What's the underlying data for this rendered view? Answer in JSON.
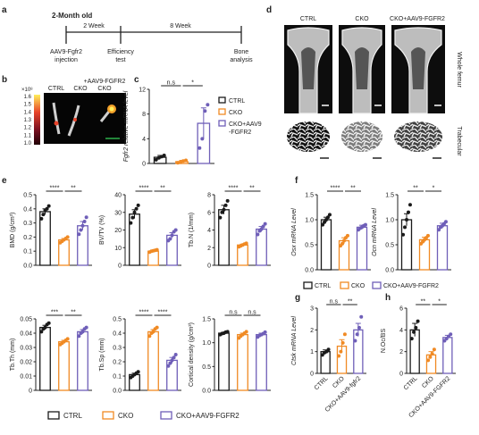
{
  "colors": {
    "ctrl": "#1a1a1a",
    "cko": "#f08a24",
    "rescue": "#6f5fb8"
  },
  "panel_a": {
    "letter": "a",
    "start": "2-Month old",
    "int1": "2 Week",
    "int2": "8 Week",
    "step1": [
      "AAV9-Fgfr2",
      "injection"
    ],
    "step2": [
      "Efficiency",
      "test"
    ],
    "step3": [
      "Bone",
      "analysis"
    ]
  },
  "panel_b": {
    "letter": "b",
    "scale": "×10⁸",
    "scale_ticks": [
      "1.6",
      "1.5",
      "1.4",
      "1.3",
      "1.2",
      "1.1",
      "1.0"
    ],
    "labels": [
      "CTRL",
      "CKO",
      "CKO"
    ],
    "top_label": "+AAV9-FGFR2"
  },
  "panel_d": {
    "letter": "d",
    "cols": [
      "CTRL",
      "CKO",
      "CKO+AAV9-FGFR2"
    ],
    "rows": [
      "Whole femur",
      "Trabecular"
    ]
  },
  "legend": {
    "ctrl": "CTRL",
    "cko": "CKO",
    "rescue": "CKO+AAV9-FGFR2",
    "rescue_c": [
      "CKO+AAV9",
      "-FGFR2"
    ]
  },
  "letters": {
    "c": "c",
    "e": "e",
    "f": "f",
    "g": "g",
    "h": "h"
  },
  "chart_data": [
    {
      "id": "c",
      "type": "bar",
      "ylabel": "Fgfr2 relative mRNA level",
      "categories": [
        "CTRL",
        "CKO",
        "CKO+AAV9-FGFR2"
      ],
      "values": [
        1.0,
        0.3,
        6.5
      ],
      "errors": [
        0.3,
        0.2,
        2.5
      ],
      "points": [
        [
          0.6,
          0.9,
          1.1,
          1.3
        ],
        [
          0.1,
          0.2,
          0.4,
          0.5
        ],
        [
          2.5,
          4.0,
          8.5,
          9.5
        ]
      ],
      "ylim": [
        0,
        12
      ],
      "ticks": [
        "0",
        "4",
        "8",
        "12"
      ],
      "sig": [
        {
          "a": 0,
          "b": 1,
          "text": "n.s"
        },
        {
          "a": 1,
          "b": 2,
          "text": "*"
        }
      ]
    },
    {
      "id": "e1",
      "type": "bar",
      "ylabel": "BMD (g/cm³)",
      "values": [
        0.38,
        0.18,
        0.28
      ],
      "errors": [
        0.02,
        0.01,
        0.03
      ],
      "points": [
        [
          0.33,
          0.36,
          0.39,
          0.4,
          0.42
        ],
        [
          0.16,
          0.17,
          0.18,
          0.19,
          0.2
        ],
        [
          0.22,
          0.25,
          0.28,
          0.31,
          0.34
        ]
      ],
      "ylim": [
        0,
        0.5
      ],
      "ticks": [
        "0.0",
        "0.1",
        "0.2",
        "0.3",
        "0.4",
        "0.5"
      ],
      "sig": [
        {
          "a": 0,
          "b": 1,
          "text": "****"
        },
        {
          "a": 1,
          "b": 2,
          "text": "**"
        }
      ]
    },
    {
      "id": "e2",
      "type": "bar",
      "ylabel": "BV/TV (%)",
      "values": [
        29,
        8,
        17
      ],
      "errors": [
        2.5,
        0.4,
        1.5
      ],
      "points": [
        [
          24,
          27,
          30,
          32,
          34
        ],
        [
          7.5,
          8,
          8.2,
          8.5,
          8.8
        ],
        [
          14,
          15,
          17,
          19,
          20
        ]
      ],
      "ylim": [
        0,
        40
      ],
      "ticks": [
        "0",
        "10",
        "20",
        "30",
        "40"
      ],
      "sig": [
        {
          "a": 0,
          "b": 1,
          "text": "****"
        },
        {
          "a": 1,
          "b": 2,
          "text": "**"
        }
      ]
    },
    {
      "id": "e3",
      "type": "bar",
      "ylabel": "Tb.N (1/mm)",
      "values": [
        6.3,
        2.3,
        4.1
      ],
      "errors": [
        0.5,
        0.1,
        0.3
      ],
      "points": [
        [
          5.4,
          6.0,
          6.3,
          6.8,
          7.3
        ],
        [
          2.1,
          2.2,
          2.3,
          2.4,
          2.5
        ],
        [
          3.5,
          3.9,
          4.1,
          4.4,
          4.7
        ]
      ],
      "ylim": [
        0,
        8
      ],
      "ticks": [
        "0",
        "2",
        "4",
        "6",
        "8"
      ],
      "sig": [
        {
          "a": 0,
          "b": 1,
          "text": "****"
        },
        {
          "a": 1,
          "b": 2,
          "text": "**"
        }
      ]
    },
    {
      "id": "e4",
      "type": "bar",
      "ylabel": "Tb.Th (mm)",
      "values": [
        0.044,
        0.034,
        0.041
      ],
      "errors": [
        0.0015,
        0.001,
        0.0015
      ],
      "points": [
        [
          0.041,
          0.043,
          0.044,
          0.046,
          0.047
        ],
        [
          0.032,
          0.033,
          0.034,
          0.035,
          0.036
        ],
        [
          0.038,
          0.04,
          0.041,
          0.043,
          0.044
        ]
      ],
      "ylim": [
        0,
        0.05
      ],
      "ticks": [
        "0",
        "0.01",
        "0.02",
        "0.03",
        "0.04",
        "0.05"
      ],
      "sig": [
        {
          "a": 0,
          "b": 1,
          "text": "***"
        },
        {
          "a": 1,
          "b": 2,
          "text": "**"
        }
      ]
    },
    {
      "id": "e5",
      "type": "bar",
      "ylabel": "Tb.Sp (mm)",
      "values": [
        0.11,
        0.41,
        0.21
      ],
      "errors": [
        0.01,
        0.015,
        0.02
      ],
      "points": [
        [
          0.09,
          0.1,
          0.11,
          0.12,
          0.13
        ],
        [
          0.38,
          0.4,
          0.41,
          0.43,
          0.44
        ],
        [
          0.17,
          0.19,
          0.21,
          0.23,
          0.25
        ]
      ],
      "ylim": [
        0,
        0.5
      ],
      "ticks": [
        "0.0",
        "0.1",
        "0.2",
        "0.3",
        "0.4",
        "0.5"
      ],
      "sig": [
        {
          "a": 0,
          "b": 1,
          "text": "****"
        },
        {
          "a": 1,
          "b": 2,
          "text": "****"
        }
      ]
    },
    {
      "id": "e6",
      "type": "bar",
      "ylabel": "Cortical density (g/cm³)",
      "values": [
        1.2,
        1.17,
        1.17
      ],
      "errors": [
        0.02,
        0.03,
        0.03
      ],
      "points": [
        [
          1.17,
          1.19,
          1.2,
          1.22,
          1.23
        ],
        [
          1.1,
          1.14,
          1.17,
          1.2,
          1.23
        ],
        [
          1.12,
          1.15,
          1.17,
          1.19,
          1.22
        ]
      ],
      "ylim": [
        0,
        1.5
      ],
      "ticks": [
        "0.0",
        "0.5",
        "1.0",
        "1.5"
      ],
      "sig": [
        {
          "a": 0,
          "b": 1,
          "text": "n.s"
        },
        {
          "a": 1,
          "b": 2,
          "text": "n.s"
        }
      ]
    },
    {
      "id": "f1",
      "type": "bar",
      "ylabel": "Osx mRNA Level",
      "values": [
        1.0,
        0.58,
        0.85
      ],
      "errors": [
        0.05,
        0.06,
        0.04
      ],
      "points": [
        [
          0.9,
          0.95,
          1.0,
          1.05,
          1.1
        ],
        [
          0.48,
          0.52,
          0.58,
          0.64,
          0.68
        ],
        [
          0.8,
          0.83,
          0.85,
          0.88,
          0.9
        ]
      ],
      "ylim": [
        0,
        1.5
      ],
      "ticks": [
        "0.0",
        "0.5",
        "1.0",
        "1.5"
      ],
      "sig": [
        {
          "a": 0,
          "b": 1,
          "text": "****"
        },
        {
          "a": 1,
          "b": 2,
          "text": "**"
        }
      ]
    },
    {
      "id": "f2",
      "type": "bar",
      "ylabel": "Ocn mRNA Level",
      "values": [
        1.0,
        0.6,
        0.88
      ],
      "errors": [
        0.12,
        0.05,
        0.05
      ],
      "points": [
        [
          0.7,
          0.85,
          1.0,
          1.15,
          1.3
        ],
        [
          0.52,
          0.56,
          0.6,
          0.64,
          0.68
        ],
        [
          0.8,
          0.85,
          0.88,
          0.92,
          0.96
        ]
      ],
      "ylim": [
        0,
        1.5
      ],
      "ticks": [
        "0.0",
        "0.5",
        "1.0",
        "1.5"
      ],
      "sig": [
        {
          "a": 0,
          "b": 1,
          "text": "**"
        },
        {
          "a": 1,
          "b": 2,
          "text": "*"
        }
      ]
    },
    {
      "id": "g",
      "type": "bar",
      "ylabel": "Ctsk mRNA Level",
      "categories": [
        "CTRL",
        "CKO",
        "CKO+AAV9-fgfr2"
      ],
      "values": [
        1.0,
        1.25,
        2.0
      ],
      "errors": [
        0.08,
        0.3,
        0.3
      ],
      "points": [
        [
          0.85,
          0.95,
          1.0,
          1.1
        ],
        [
          0.8,
          1.0,
          1.4,
          1.8
        ],
        [
          1.5,
          1.8,
          2.1,
          2.6
        ]
      ],
      "ylim": [
        0,
        3
      ],
      "ticks": [
        "0",
        "1",
        "2",
        "3"
      ],
      "sig": [
        {
          "a": 0,
          "b": 1,
          "text": "n.s"
        },
        {
          "a": 1,
          "b": 2,
          "text": "**"
        }
      ]
    },
    {
      "id": "h",
      "type": "bar",
      "ylabel": "N.Oc/BS",
      "categories": [
        "CTRL",
        "CKO",
        "CKO+AAV9-FGFR2"
      ],
      "values": [
        4.0,
        1.7,
        3.3
      ],
      "errors": [
        0.6,
        0.3,
        0.2
      ],
      "points": [
        [
          3.2,
          3.8,
          4.2,
          4.8
        ],
        [
          1.2,
          1.5,
          1.8,
          2.2
        ],
        [
          3.0,
          3.2,
          3.4,
          3.6
        ]
      ],
      "ylim": [
        0,
        6
      ],
      "ticks": [
        "0",
        "2",
        "4",
        "6"
      ],
      "sig": [
        {
          "a": 0,
          "b": 1,
          "text": "**"
        },
        {
          "a": 1,
          "b": 2,
          "text": "*"
        }
      ]
    }
  ]
}
